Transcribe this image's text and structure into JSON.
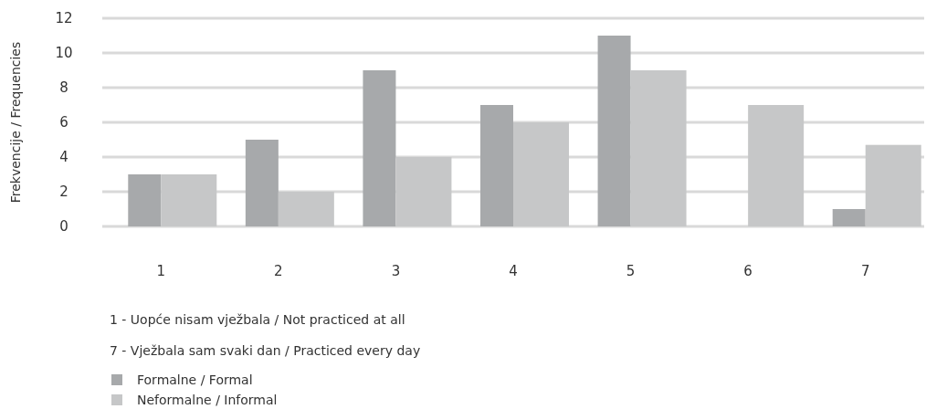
{
  "chart_data": {
    "type": "bar",
    "ylabel": "Frekvencije / Frequencies",
    "categories": [
      "1",
      "2",
      "3",
      "4",
      "5",
      "6",
      "7"
    ],
    "series": [
      {
        "name": "Formalne / Formal",
        "color": "#a7a9ab",
        "values": [
          3,
          5,
          9,
          7,
          11,
          0,
          1
        ]
      },
      {
        "name": "Neformalne / Informal",
        "color": "#c6c7c8",
        "values": [
          3,
          2,
          4,
          6,
          9,
          7,
          4.7
        ]
      }
    ],
    "ylim": [
      0,
      12
    ],
    "yticks": [
      0,
      2,
      4,
      6,
      8,
      10,
      12
    ],
    "grid": "y",
    "legend": "bottom left",
    "annotations": [
      "1 - Uopće nisam vježbala / Not practiced at all",
      "7 - Vježbala sam svaki dan / Practiced every day"
    ]
  }
}
